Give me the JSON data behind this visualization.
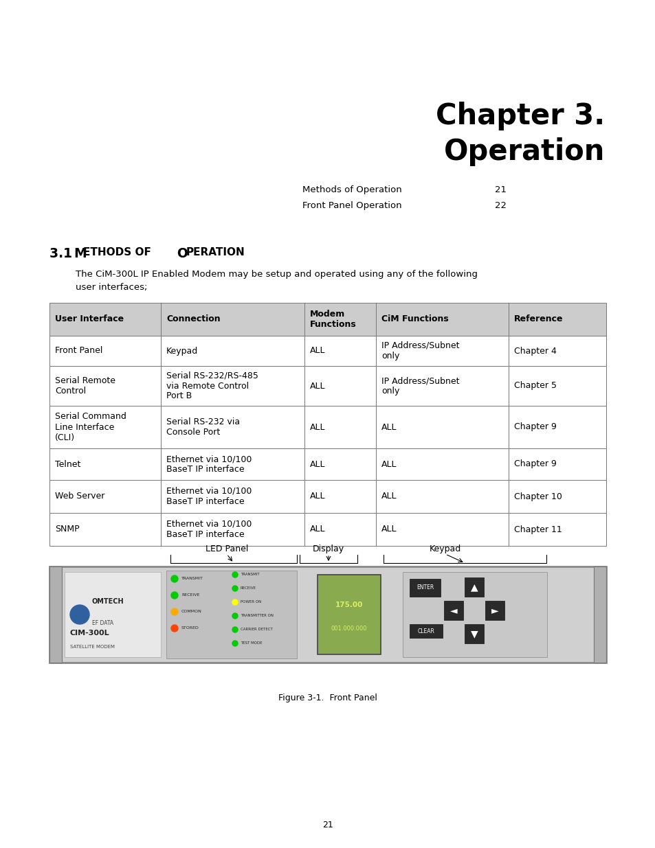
{
  "bg_color": "#ffffff",
  "chapter_title_line1": "Chapter 3.",
  "chapter_title_line2": "Operation",
  "chapter_title_fontsize": 30,
  "toc_items": [
    {
      "text": "Methods of Operation",
      "page": "21"
    },
    {
      "text": "Front Panel Operation",
      "page": "22"
    }
  ],
  "section_heading_prefix": "3.1 ",
  "section_heading_cap1": "M",
  "section_heading_mid": "ETHODS OF ",
  "section_heading_cap2": "O",
  "section_heading_end": "PERATION",
  "body_text_line1": "The CiM-300L IP Enabled Modem may be setup and operated using any of the following",
  "body_text_line2": "user interfaces;",
  "header_bg": "#cccccc",
  "header_labels": [
    "User Interface",
    "Connection",
    "Modem\nFunctions",
    "CiM Functions",
    "Reference"
  ],
  "table_rows": [
    [
      "Front Panel",
      "Keypad",
      "ALL",
      "IP Address/Subnet\nonly",
      "Chapter 4"
    ],
    [
      "Serial Remote\nControl",
      "Serial RS-232/RS-485\nvia Remote Control\nPort B",
      "ALL",
      "IP Address/Subnet\nonly",
      "Chapter 5"
    ],
    [
      "Serial Command\nLine Interface\n(CLI)",
      "Serial RS-232 via\nConsole Port",
      "ALL",
      "ALL",
      "Chapter 9"
    ],
    [
      "Telnet",
      "Ethernet via 10/100\nBaseT IP interface",
      "ALL",
      "ALL",
      "Chapter 9"
    ],
    [
      "Web Server",
      "Ethernet via 10/100\nBaseT IP interface",
      "ALL",
      "ALL",
      "Chapter 10"
    ],
    [
      "SNMP",
      "Ethernet via 10/100\nBaseT IP interface",
      "ALL",
      "ALL",
      "Chapter 11"
    ]
  ],
  "figure_caption": "Figure 3-1.  Front Panel",
  "page_number": "21",
  "annot_labels": [
    "LED Panel",
    "Display",
    "Keypad"
  ]
}
